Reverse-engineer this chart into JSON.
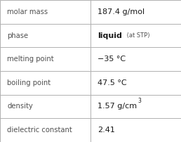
{
  "rows": [
    {
      "label": "molar mass",
      "value_parts": [
        {
          "text": "187.4 g/mol",
          "style": "normal"
        }
      ]
    },
    {
      "label": "phase",
      "value_parts": [
        {
          "text": "liquid",
          "style": "bold"
        },
        {
          "text": " (at STP)",
          "style": "small"
        }
      ]
    },
    {
      "label": "melting point",
      "value_parts": [
        {
          "text": "−35 °C",
          "style": "normal"
        }
      ]
    },
    {
      "label": "boiling point",
      "value_parts": [
        {
          "text": "47.5 °C",
          "style": "normal"
        }
      ]
    },
    {
      "label": "density",
      "value_parts": [
        {
          "text": "1.57 g/cm",
          "style": "normal"
        },
        {
          "text": "3",
          "style": "super"
        }
      ]
    },
    {
      "label": "dielectric constant",
      "value_parts": [
        {
          "text": "2.41",
          "style": "normal"
        }
      ]
    }
  ],
  "col_split": 0.5,
  "background_color": "#ffffff",
  "border_color": "#b0b0b0",
  "label_color": "#505050",
  "value_color": "#1a1a1a",
  "label_fontsize": 7.2,
  "value_fontsize": 8.0,
  "small_fontsize": 6.0,
  "super_fontsize": 5.5,
  "figwidth": 2.58,
  "figheight": 2.02,
  "dpi": 100
}
